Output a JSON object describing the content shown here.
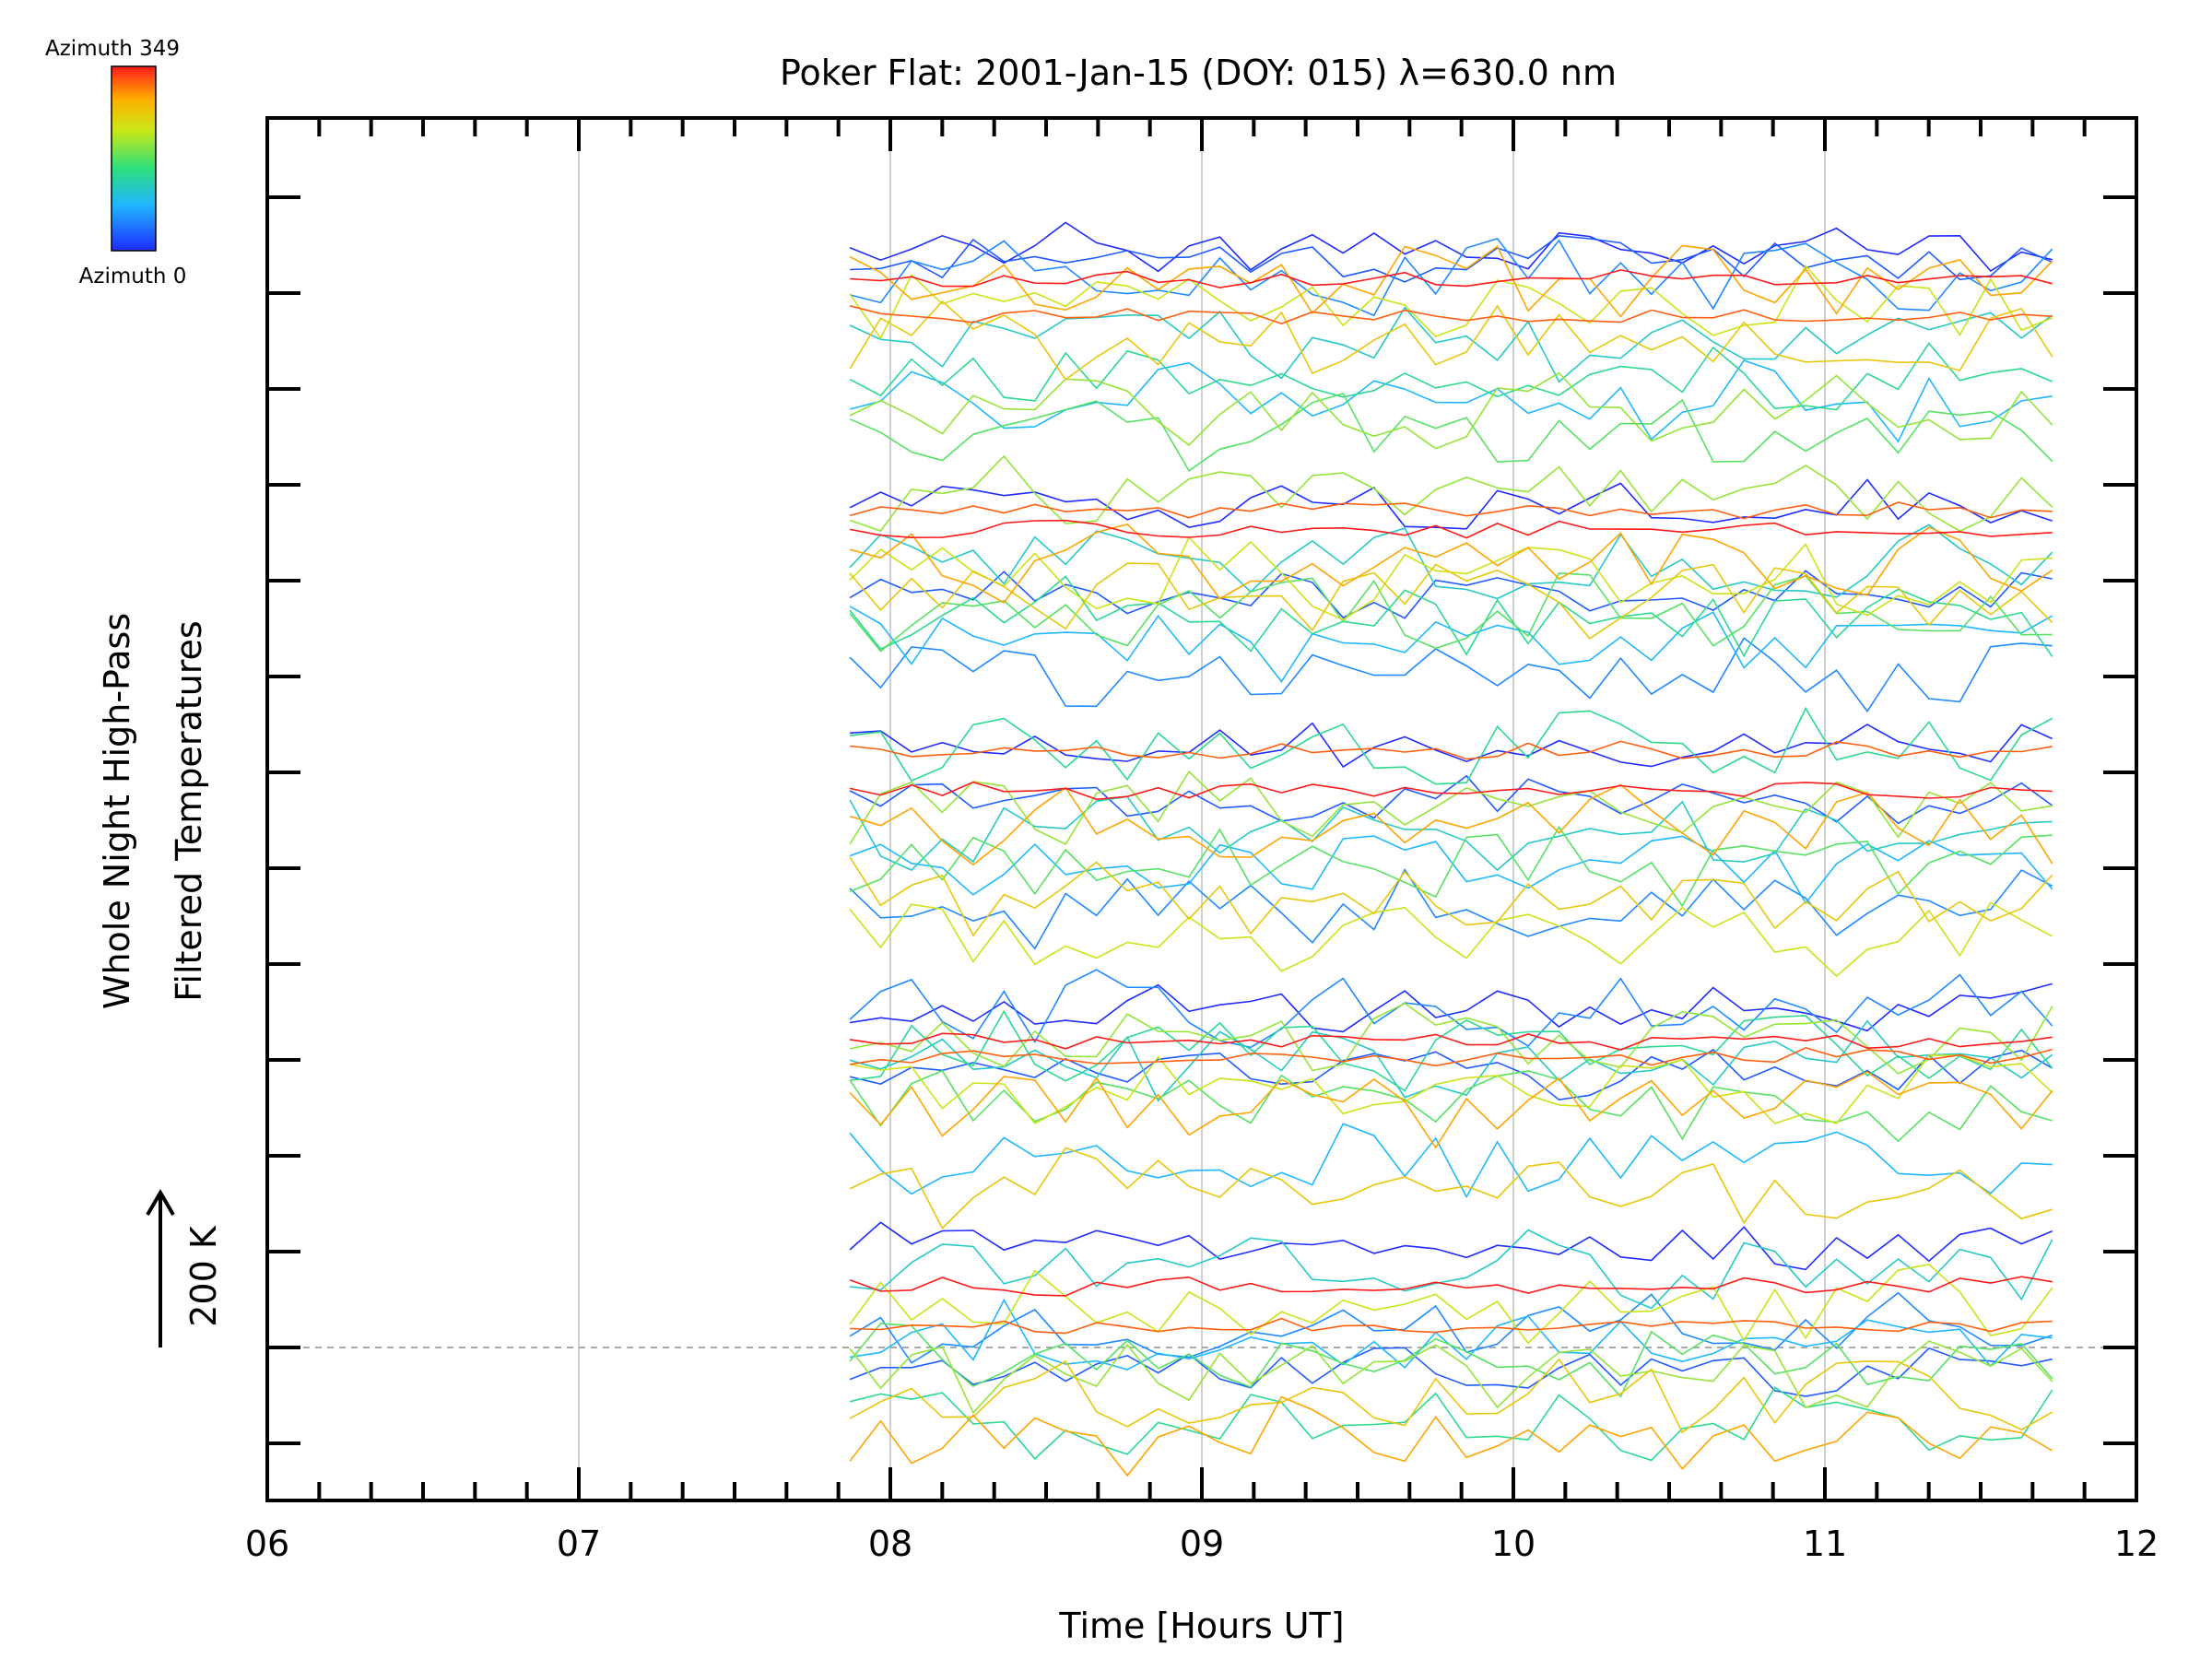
{
  "chart_data": {
    "type": "line",
    "title": "Poker Flat: 2001-Jan-15 (DOY: 015) λ=630.0 nm",
    "xlabel": "Time [Hours UT]",
    "ylabel_line1": "Whole Night High-Pass",
    "ylabel_line2": "Filtered Temperatures",
    "scale_label": "200 K",
    "x_ticks": [
      "06",
      "07",
      "08",
      "09",
      "10",
      "11",
      "12"
    ],
    "xlim": [
      6,
      12
    ],
    "grid": true,
    "colorbar": {
      "top_label": "Azimuth 349",
      "bottom_label": "Azimuth 0"
    },
    "colors": {
      "low_azimuth": "#1f2cff",
      "high_azimuth": "#ff1a1a",
      "grid": "#d0d0d0",
      "baseline": "#aaaaaa"
    },
    "series_generation": {
      "note_on_values": "Traces are 65 high-pass filtered temperature series stacked in offset bands, one per azimuth, colored by azimuth from 0 (blue) to 349 (red).",
      "x_start": 7.87,
      "x_end": 11.73,
      "n_points": 40,
      "n_bands": 5,
      "traces_per_band": 13
    }
  }
}
